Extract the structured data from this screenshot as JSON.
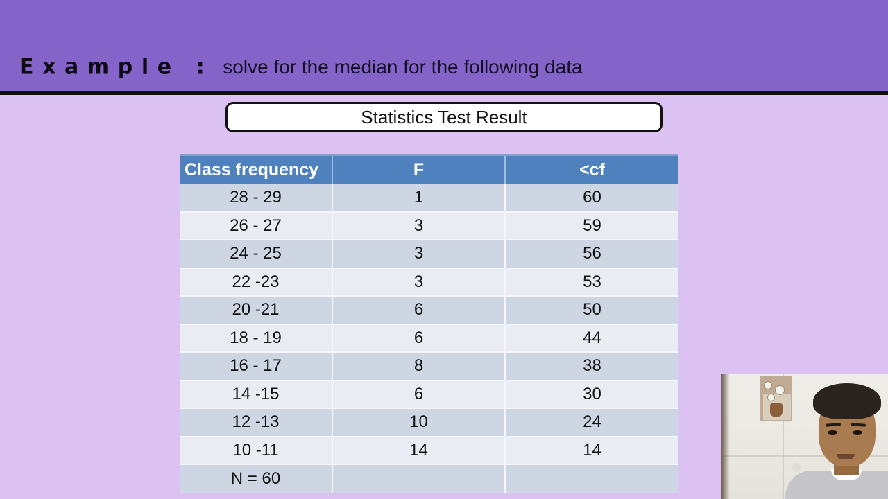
{
  "slide": {
    "header": {
      "example_label": "Example :",
      "subtitle": "solve for the median for the following data"
    },
    "title_box": {
      "text": "Statistics Test Result"
    }
  },
  "table": {
    "columns": [
      "Class frequency",
      "F",
      "<cf"
    ],
    "rows": [
      {
        "class_interval": "28 - 29",
        "f": "1",
        "cf": "60"
      },
      {
        "class_interval": "26 - 27",
        "f": "3",
        "cf": "59"
      },
      {
        "class_interval": "24 - 25",
        "f": "3",
        "cf": "56"
      },
      {
        "class_interval": "22 -23",
        "f": "3",
        "cf": "53"
      },
      {
        "class_interval": "20 -21",
        "f": "6",
        "cf": "50"
      },
      {
        "class_interval": "18 - 19",
        "f": "6",
        "cf": "44"
      },
      {
        "class_interval": "16 - 17",
        "f": "8",
        "cf": "38"
      },
      {
        "class_interval": "14 -15",
        "f": "6",
        "cf": "30"
      },
      {
        "class_interval": "12 -13",
        "f": "10",
        "cf": "24"
      },
      {
        "class_interval": "10 -11",
        "f": "14",
        "cf": "14"
      },
      {
        "class_interval": "N = 60",
        "f": "",
        "cf": ""
      }
    ]
  },
  "colors": {
    "band_purple": "#8464c9",
    "background_lavender": "#dcc2f2",
    "divider_black": "#0e0e18",
    "table_header_blue": "#4e81bd",
    "row_dark": "#cfd6e3",
    "row_light": "#e9ecf3",
    "header_text": "#ffffff",
    "body_text": "#121212"
  },
  "webcam": {
    "present": true
  }
}
